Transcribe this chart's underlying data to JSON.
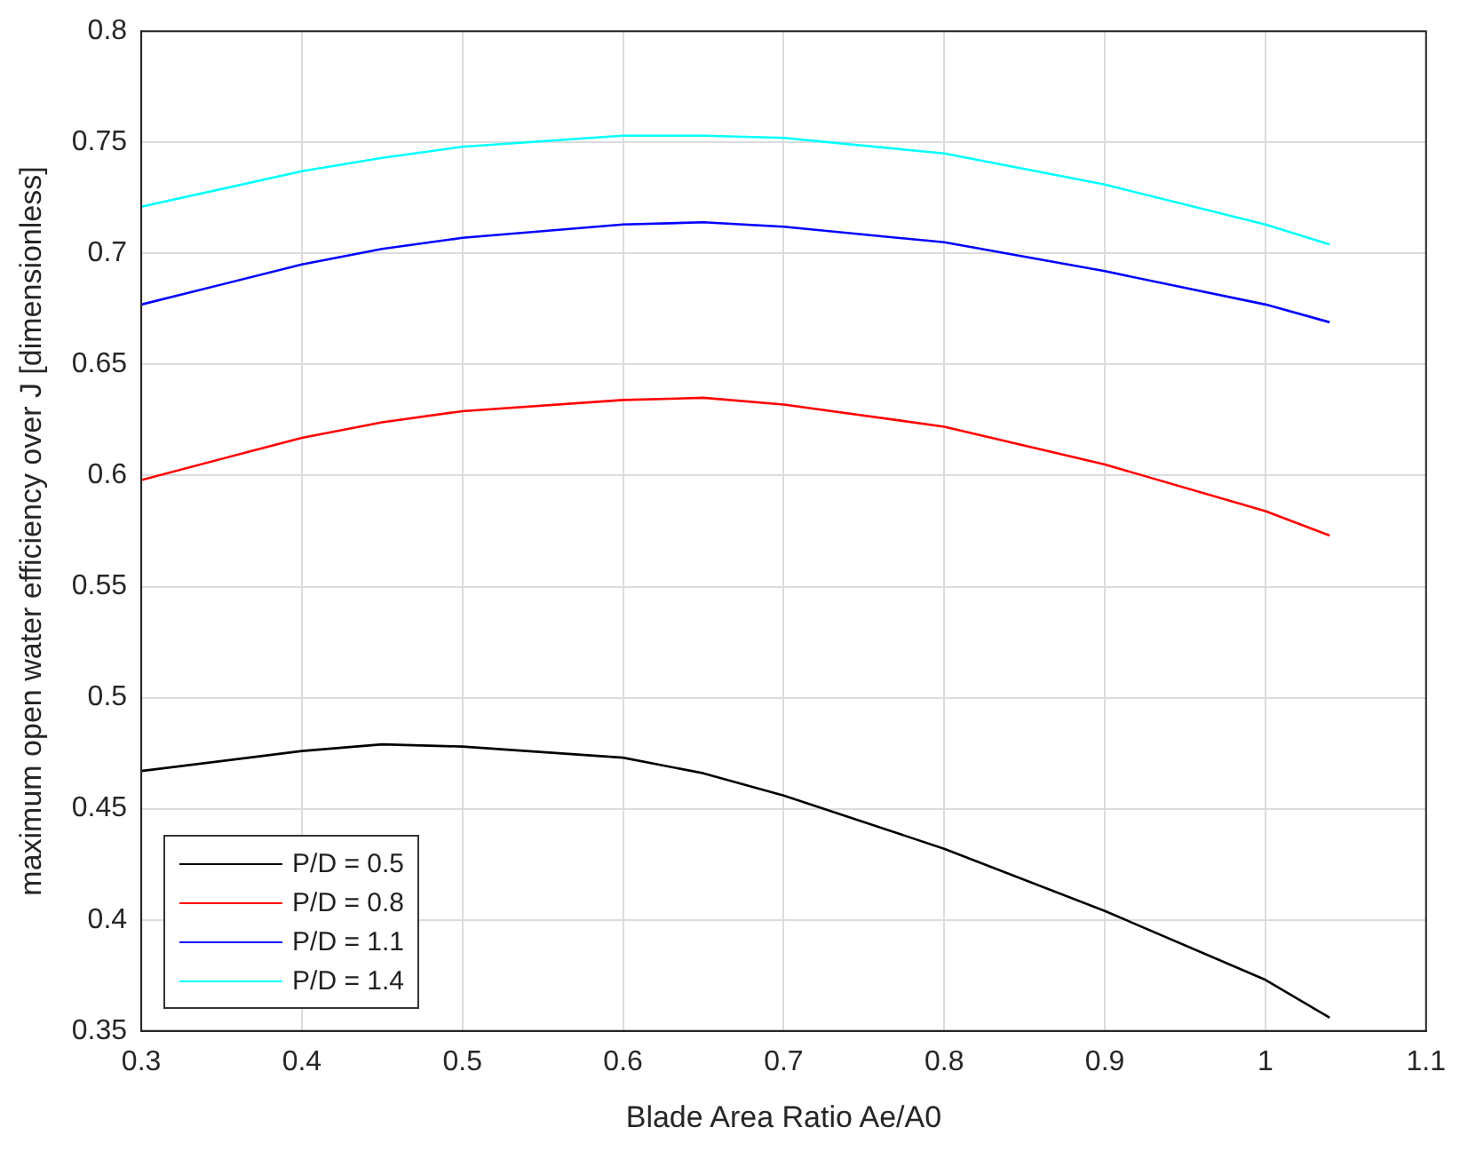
{
  "chart_data": {
    "type": "line",
    "xlabel": "Blade Area Ratio Ae/A0",
    "ylabel": "maximum open water efficiency over J [dimensionless]",
    "x": [
      0.3,
      0.4,
      0.45,
      0.5,
      0.6,
      0.65,
      0.7,
      0.8,
      0.9,
      1.0,
      1.04
    ],
    "series": [
      {
        "name": "P/D = 0.5",
        "color": "#000000",
        "values": [
          0.467,
          0.476,
          0.479,
          0.478,
          0.473,
          0.466,
          0.456,
          0.432,
          0.404,
          0.373,
          0.356
        ]
      },
      {
        "name": "P/D = 0.8",
        "color": "#ff0000",
        "values": [
          0.598,
          0.617,
          0.624,
          0.629,
          0.634,
          0.635,
          0.632,
          0.622,
          0.605,
          0.584,
          0.573
        ]
      },
      {
        "name": "P/D = 1.1",
        "color": "#0000ff",
        "values": [
          0.677,
          0.695,
          0.702,
          0.707,
          0.713,
          0.714,
          0.712,
          0.705,
          0.692,
          0.677,
          0.669
        ]
      },
      {
        "name": "P/D = 1.4",
        "color": "#00ffff",
        "values": [
          0.721,
          0.737,
          0.743,
          0.748,
          0.753,
          0.753,
          0.752,
          0.745,
          0.731,
          0.713,
          0.704
        ]
      }
    ],
    "xlim": [
      0.3,
      1.1
    ],
    "xticks": [
      0.3,
      0.4,
      0.5,
      0.6,
      0.7,
      0.8,
      0.9,
      1,
      1.1
    ],
    "ylim": [
      0.35,
      0.8
    ],
    "yticks": [
      0.35,
      0.4,
      0.45,
      0.5,
      0.55,
      0.6,
      0.65,
      0.7,
      0.75,
      0.8
    ],
    "grid": true,
    "legend": "bottom left",
    "marker": "none",
    "line_style": "solid"
  }
}
